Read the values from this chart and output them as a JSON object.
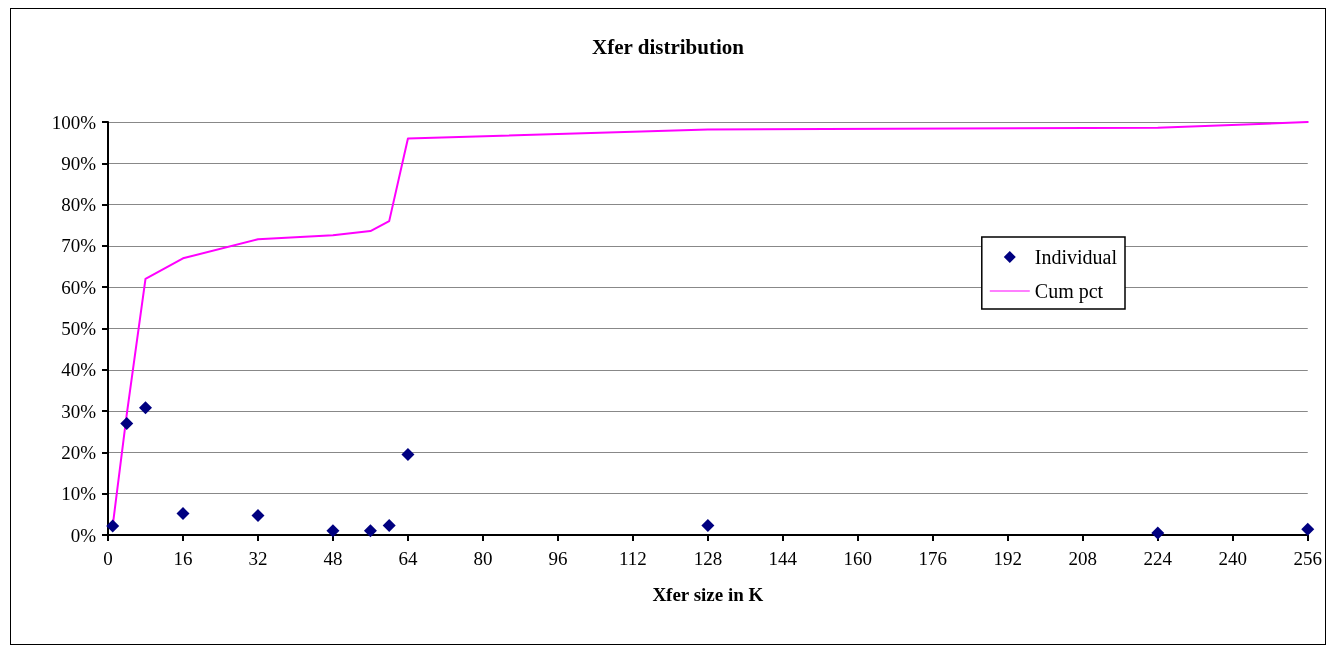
{
  "chart_data": {
    "type": "scatter",
    "title": "Xfer distribution",
    "xlabel": "Xfer size in K",
    "x": [
      1,
      4,
      8,
      16,
      32,
      48,
      56,
      60,
      64,
      128,
      224,
      256
    ],
    "series": [
      {
        "name": "Individual",
        "color": "#000080",
        "marker": "diamond",
        "values": [
          2.2,
          27,
          30.8,
          5.2,
          4.7,
          1,
          1,
          2.3,
          19.5,
          2.3,
          0.5,
          1.4
        ]
      },
      {
        "name": "Cum pct",
        "type": "line",
        "color": "#ff00ff",
        "marker": "none",
        "values": [
          2.2,
          29.2,
          62,
          67,
          71.6,
          72.6,
          73.6,
          76,
          96,
          98.2,
          98.6,
          100
        ]
      }
    ],
    "xlim": [
      0,
      256
    ],
    "xticks": [
      0,
      16,
      32,
      48,
      64,
      80,
      96,
      112,
      128,
      144,
      160,
      176,
      192,
      208,
      224,
      240,
      256
    ],
    "ylim": [
      0,
      100
    ],
    "yticks": [
      {
        "value": 0,
        "label": "0%"
      },
      {
        "value": 10,
        "label": "10%"
      },
      {
        "value": 20,
        "label": "20%"
      },
      {
        "value": 30,
        "label": "30%"
      },
      {
        "value": 40,
        "label": "40%"
      },
      {
        "value": 50,
        "label": "50%"
      },
      {
        "value": 60,
        "label": "60%"
      },
      {
        "value": 70,
        "label": "70%"
      },
      {
        "value": 80,
        "label": "80%"
      },
      {
        "value": 90,
        "label": "90%"
      },
      {
        "value": 100,
        "label": "100%"
      }
    ],
    "grid": "y",
    "legend": "right"
  }
}
